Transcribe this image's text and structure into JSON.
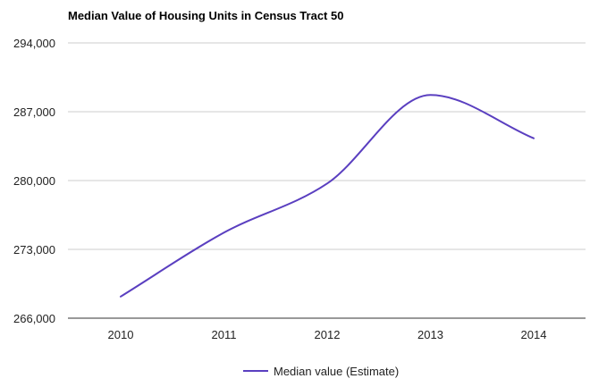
{
  "chart_data": {
    "type": "line",
    "title": "Median Value of Housing Units in Census Tract 50",
    "categories": [
      "2010",
      "2011",
      "2012",
      "2013",
      "2014"
    ],
    "series": [
      {
        "name": "Median value (Estimate)",
        "values": [
          268200,
          274700,
          279700,
          288700,
          284300
        ]
      }
    ],
    "y_ticks": [
      266000,
      273000,
      280000,
      287000,
      294000
    ],
    "y_tick_labels": [
      "266,000",
      "273,000",
      "280,000",
      "287,000",
      "294,000"
    ],
    "ylim": [
      266000,
      294000
    ],
    "curve": "smooth",
    "grid": true,
    "legend": "bottom-center",
    "colors": {
      "series": "#5a3fc0",
      "grid": "#cccccc",
      "baseline": "#333333"
    }
  }
}
